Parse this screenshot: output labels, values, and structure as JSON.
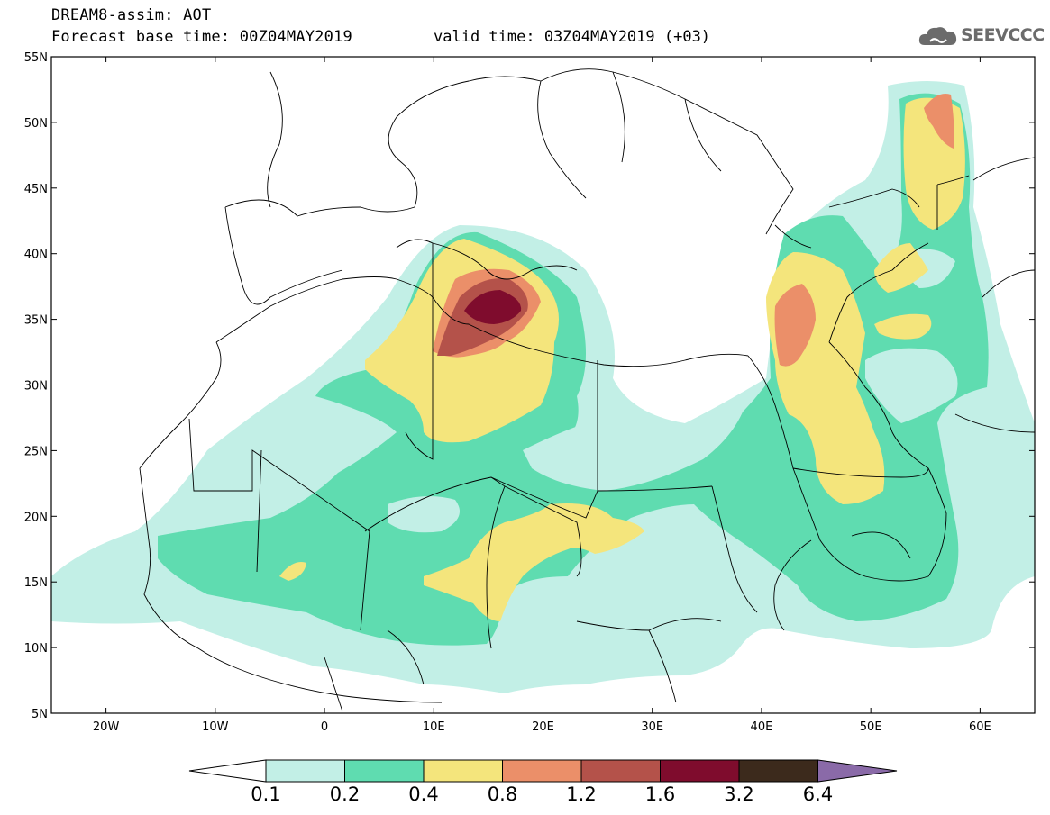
{
  "header": {
    "title_line1": "DREAM8-assim: AOT",
    "title_line2": "Forecast base time: 00Z04MAY2019",
    "valid_time": "valid time: 03Z04MAY2019 (+03)",
    "logo_text": "SEEVCCC",
    "logo_icon": "cloud-icon"
  },
  "map": {
    "lat_labels": [
      "55N",
      "50N",
      "45N",
      "40N",
      "35N",
      "30N",
      "25N",
      "20N",
      "15N",
      "10N",
      "5N"
    ],
    "lon_labels": [
      "20W",
      "10W",
      "0",
      "10E",
      "20E",
      "30E",
      "40E",
      "50E",
      "60E"
    ],
    "lon_range": [
      -25,
      65
    ],
    "lat_range": [
      5,
      55
    ]
  },
  "colorbar": {
    "labels": [
      "0.1",
      "0.2",
      "0.4",
      "0.8",
      "1.2",
      "1.6",
      "3.2",
      "6.4"
    ],
    "colors": [
      "#ffffff",
      "#c2efe6",
      "#5fdcb0",
      "#f4e57c",
      "#eb8f69",
      "#b4524a",
      "#7f0c2d",
      "#3c2a1c",
      "#8a6aa8"
    ]
  },
  "colors": {
    "c1": "#c2efe6",
    "c2": "#5fdcb0",
    "c3": "#f4e57c",
    "c4": "#eb8f69",
    "c5": "#b4524a",
    "c6": "#7f0c2d"
  }
}
